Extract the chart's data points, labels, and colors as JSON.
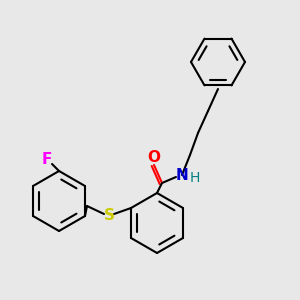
{
  "background_color": "#e8e8e8",
  "bond_color": "#000000",
  "bond_lw": 1.5,
  "atom_colors": {
    "F": "#ff00ff",
    "O": "#ff0000",
    "N": "#0000cc",
    "S": "#cccc00",
    "H": "#008080"
  },
  "font_size": 9
}
